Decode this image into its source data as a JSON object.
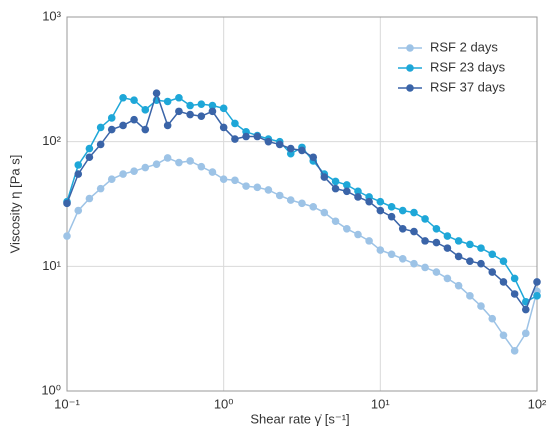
{
  "chart_data": {
    "type": "line",
    "xlabel": "Shear rate γ̇ [s⁻¹]",
    "ylabel": "Viscosity  η  [Pa s]",
    "xscale": "log",
    "yscale": "log",
    "grid": true,
    "legend": "upper right",
    "x": [
      0.1,
      0.118,
      0.139,
      0.164,
      0.193,
      0.228,
      0.268,
      0.316,
      0.373,
      0.439,
      0.518,
      0.611,
      0.72,
      0.848,
      1,
      1.18,
      1.39,
      1.64,
      1.93,
      2.28,
      2.68,
      3.16,
      3.73,
      4.39,
      5.18,
      6.11,
      7.2,
      8.48,
      10,
      11.8,
      13.9,
      16.4,
      19.3,
      22.8,
      26.8,
      31.6,
      37.3,
      43.9,
      51.8,
      61.1,
      72,
      84.8,
      100
    ],
    "series": [
      {
        "name": "RSF 2 days",
        "color": "#9dc3e6",
        "values": [
          17.5,
          28,
          35,
          42,
          50,
          55,
          58,
          62,
          66,
          74,
          68,
          70,
          63,
          57,
          50,
          49,
          44,
          43,
          41,
          37,
          34,
          32,
          30,
          27,
          23,
          20,
          18,
          16,
          13.5,
          12.5,
          11.5,
          10.5,
          9.8,
          9,
          8,
          7,
          5.8,
          4.8,
          3.8,
          2.8,
          2.1,
          2.9,
          6.3
        ]
      },
      {
        "name": "RSF 23 days",
        "color": "#1ea7d8",
        "values": [
          33,
          65,
          88,
          130,
          155,
          225,
          215,
          180,
          215,
          210,
          225,
          195,
          200,
          195,
          185,
          140,
          120,
          112,
          105,
          100,
          80,
          90,
          70,
          55,
          48,
          45,
          40,
          36,
          33,
          30,
          28,
          27,
          24,
          20,
          17.5,
          16,
          15,
          14,
          12.5,
          11,
          8,
          5.2,
          5.8
        ]
      },
      {
        "name": "RSF 37 days",
        "color": "#3a64a8",
        "values": [
          32,
          55,
          75,
          95,
          125,
          135,
          150,
          125,
          245,
          135,
          175,
          165,
          160,
          175,
          130,
          105,
          110,
          110,
          100,
          95,
          88,
          85,
          75,
          52,
          42,
          40,
          36,
          33,
          28,
          25,
          20,
          19,
          16,
          15.5,
          14,
          12,
          11,
          10.5,
          9,
          7.5,
          6,
          4.5,
          7.5
        ]
      }
    ],
    "xlim": [
      0.1,
      100
    ],
    "ylim": [
      1,
      1000
    ],
    "xticks": [
      {
        "value": 0.1,
        "label": "10⁻¹"
      },
      {
        "value": 1,
        "label": "10⁰"
      },
      {
        "value": 10,
        "label": "10¹"
      },
      {
        "value": 100,
        "label": "10²"
      }
    ],
    "yticks": [
      {
        "value": 1,
        "label": "10⁰"
      },
      {
        "value": 10,
        "label": "10¹"
      },
      {
        "value": 100,
        "label": "10²"
      },
      {
        "value": 1000,
        "label": "10³"
      }
    ]
  }
}
